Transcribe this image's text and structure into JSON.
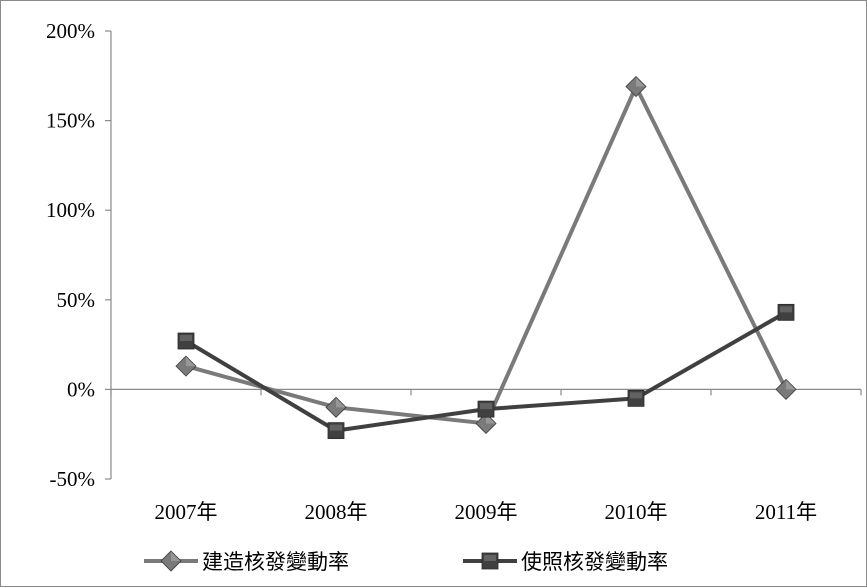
{
  "chart_data": {
    "type": "line",
    "categories": [
      "2007年",
      "2008年",
      "2009年",
      "2010年",
      "2011年"
    ],
    "series": [
      {
        "name": "建造核發變動率",
        "values": [
          13,
          -10,
          -19,
          169,
          0
        ],
        "color": "#7a7a7a",
        "marker": "diamond"
      },
      {
        "name": "使照核發變動率",
        "values": [
          27,
          -23,
          -11,
          -5,
          43
        ],
        "color": "#404040",
        "marker": "square"
      }
    ],
    "yticks": [
      "200%",
      "150%",
      "100%",
      "50%",
      "0%",
      "-50%"
    ],
    "ylim": [
      -50,
      200
    ],
    "title": "",
    "xlabel": "",
    "ylabel": "",
    "grid": false,
    "legend_position": "bottom"
  }
}
